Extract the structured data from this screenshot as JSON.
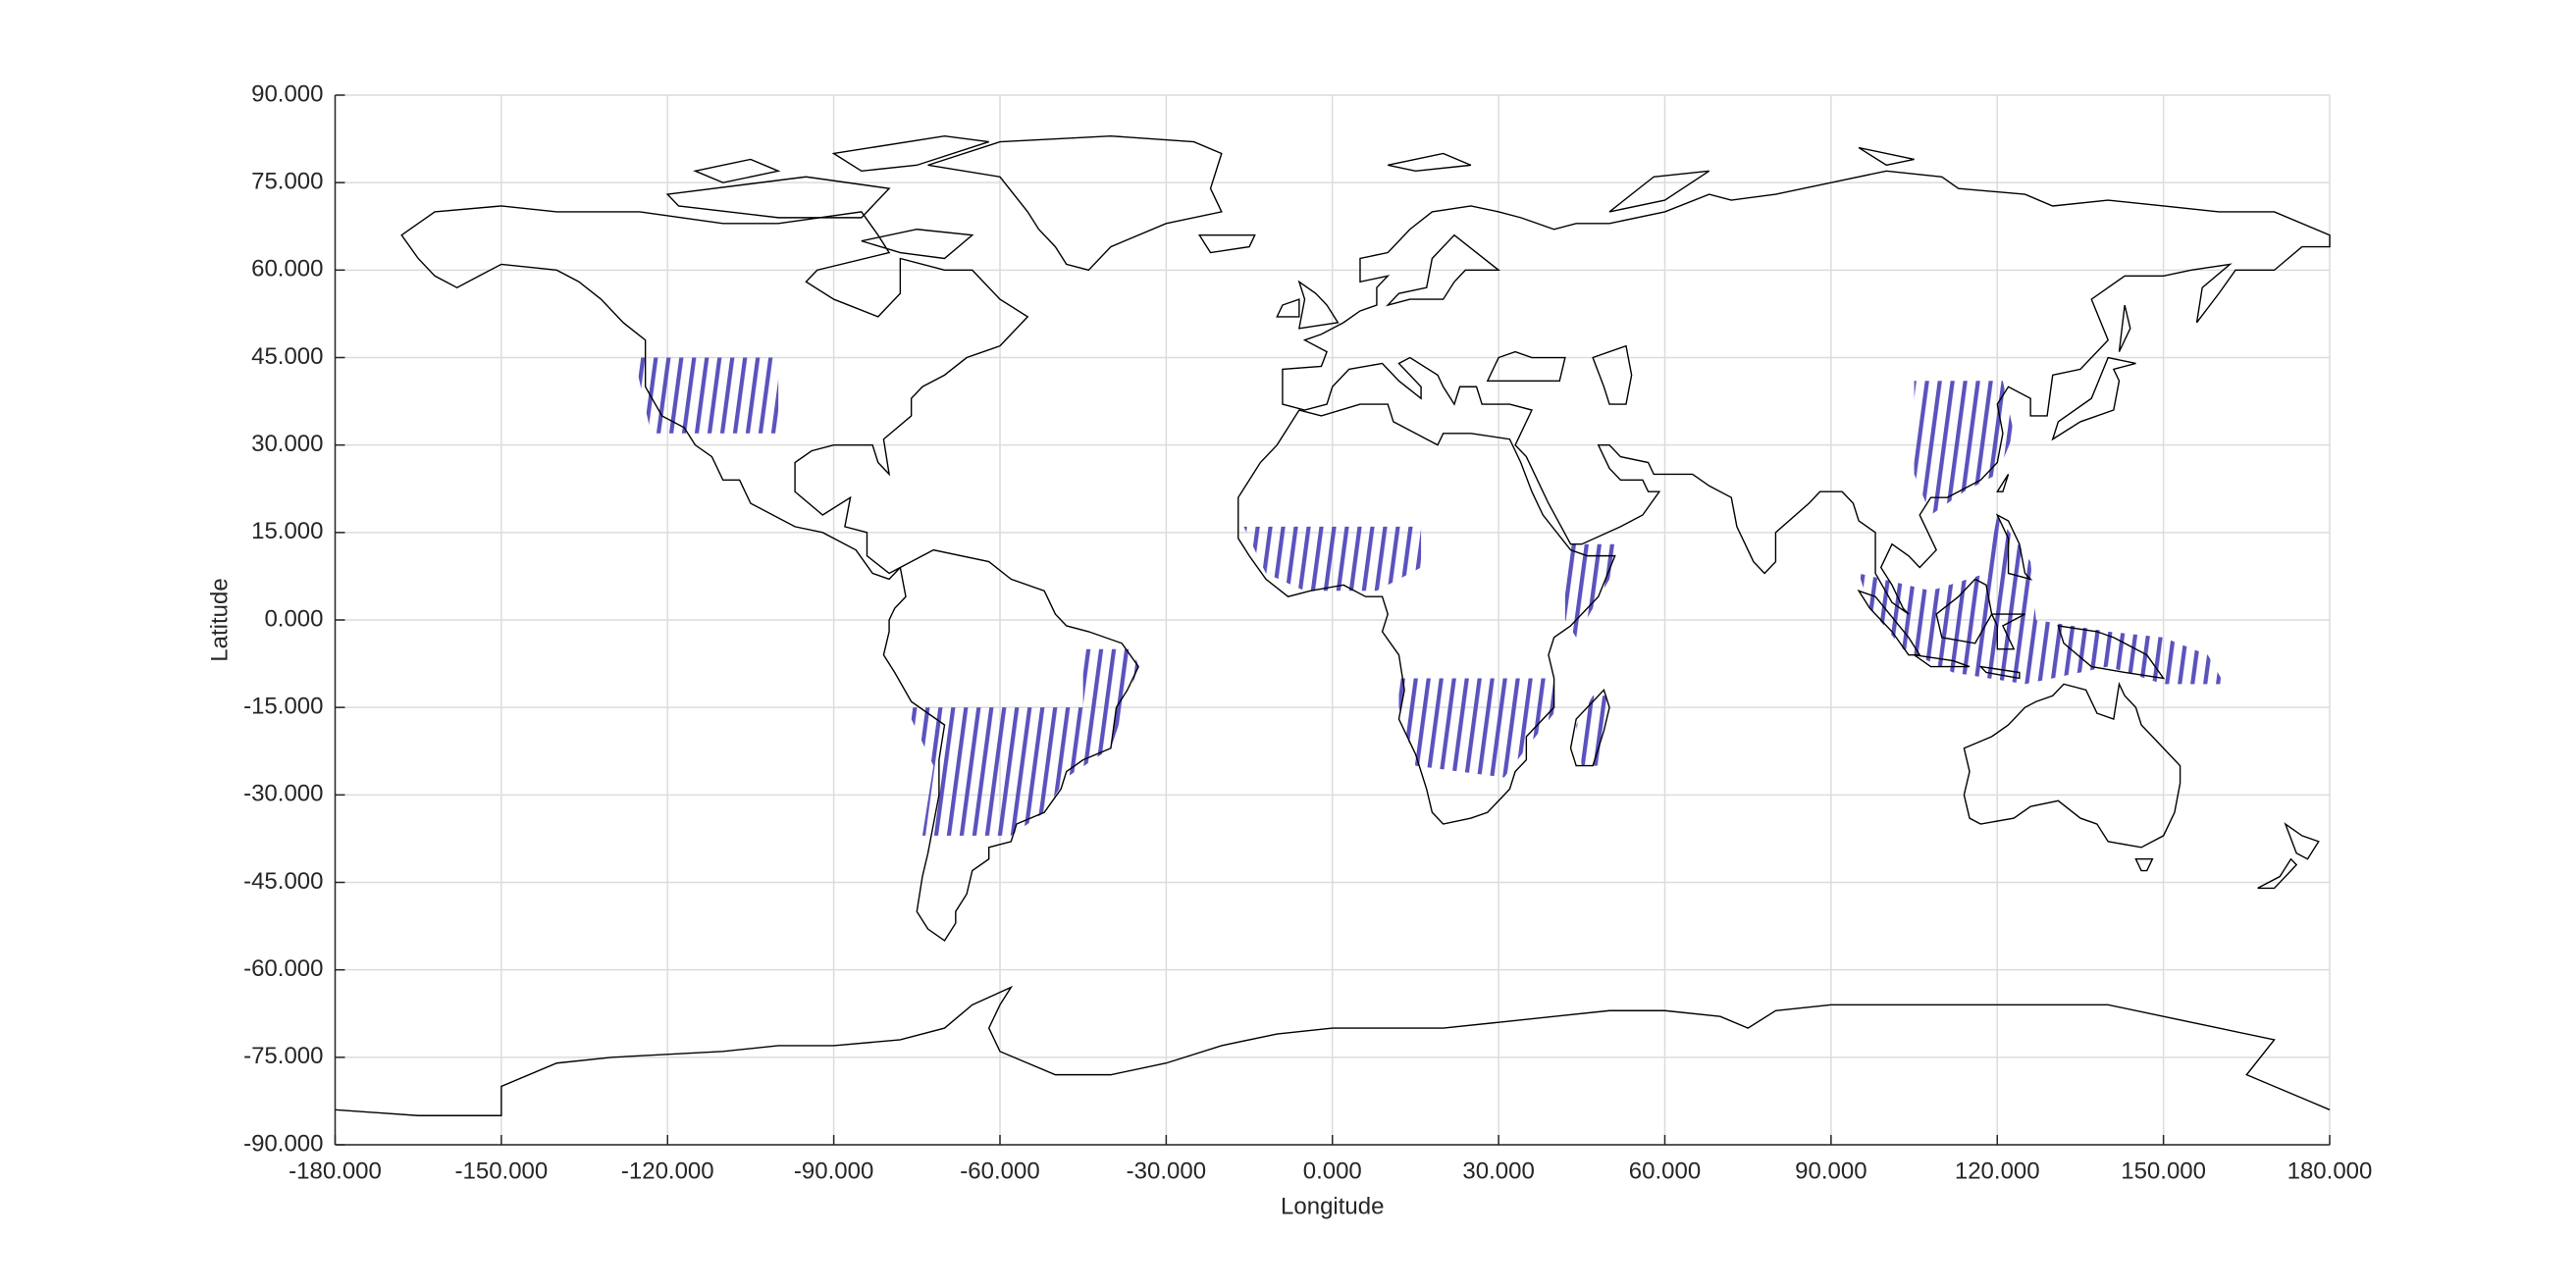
{
  "chart_data": {
    "type": "map",
    "xlabel": "Longitude",
    "ylabel": "Latitude",
    "xlim": [
      -180,
      180
    ],
    "ylim": [
      -90,
      90
    ],
    "xticks": [
      {
        "value": -180,
        "label": "-180.000"
      },
      {
        "value": -150,
        "label": "-150.000"
      },
      {
        "value": -120,
        "label": "-120.000"
      },
      {
        "value": -90,
        "label": "-90.000"
      },
      {
        "value": -60,
        "label": "-60.000"
      },
      {
        "value": -30,
        "label": "-30.000"
      },
      {
        "value": 0,
        "label": "0.000"
      },
      {
        "value": 30,
        "label": "30.000"
      },
      {
        "value": 60,
        "label": "60.000"
      },
      {
        "value": 90,
        "label": "90.000"
      },
      {
        "value": 120,
        "label": "120.000"
      },
      {
        "value": 150,
        "label": "150.000"
      },
      {
        "value": 180,
        "label": "180.000"
      }
    ],
    "yticks": [
      {
        "value": -90,
        "label": "-90.000"
      },
      {
        "value": -75,
        "label": "-75.000"
      },
      {
        "value": -60,
        "label": "-60.000"
      },
      {
        "value": -45,
        "label": "-45.000"
      },
      {
        "value": -30,
        "label": "-30.000"
      },
      {
        "value": -15,
        "label": "-15.000"
      },
      {
        "value": 0,
        "label": "0.000"
      },
      {
        "value": 15,
        "label": "15.000"
      },
      {
        "value": 30,
        "label": "30.000"
      },
      {
        "value": 45,
        "label": "45.000"
      },
      {
        "value": 60,
        "label": "60.000"
      },
      {
        "value": 75,
        "label": "75.000"
      },
      {
        "value": 90,
        "label": "90.000"
      }
    ],
    "grid": true
  }
}
